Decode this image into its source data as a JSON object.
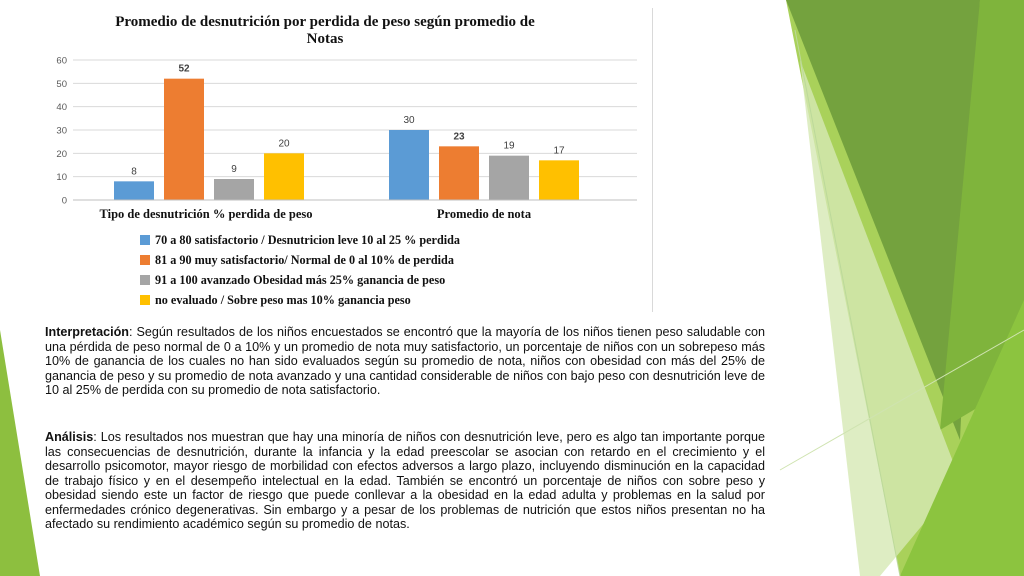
{
  "chart_data": {
    "type": "bar",
    "title": "Promedio de desnutrición por perdida de peso según promedio de Notas",
    "categories": [
      "Tipo de desnutrición % perdida de peso",
      "Promedio de nota"
    ],
    "ylim": [
      0,
      60
    ],
    "yticks": [
      "0",
      "10",
      "20",
      "30",
      "40",
      "50",
      "60"
    ],
    "grid": true,
    "legend_position": "bottom",
    "series": [
      {
        "name": "70 a 80 satisfactorio / Desnutricion leve 10 al 25 % perdida",
        "color": "#5b9bd5",
        "values": [
          8,
          30
        ]
      },
      {
        "name": "81 a 90 muy satisfactorio/ Normal de 0 al 10% de perdida",
        "color": "#ed7d31",
        "values": [
          52,
          23
        ]
      },
      {
        "name": "91 a 100 avanzado Obesidad más 25% ganancia de peso",
        "color": "#a5a5a5",
        "values": [
          9,
          19
        ]
      },
      {
        "name": "no evaluado / Sobre peso mas 10% ganancia peso",
        "color": "#ffc000",
        "values": [
          20,
          17
        ]
      }
    ]
  },
  "text": {
    "interp_label": "Interpretación",
    "interp_body": ": Según resultados de los niños encuestados se encontró que la mayoría de los niños tienen peso saludable con una pérdida de peso normal de 0 a 10% y un promedio de nota muy satisfactorio, un porcentaje de niños con un sobrepeso más 10% de ganancia de los cuales no han sido evaluados según su promedio de nota, niños con obesidad con más del 25% de ganancia de peso y su promedio de nota avanzado y una cantidad considerable de niños con bajo peso con desnutrición leve de 10 al 25% de perdida con su promedio de nota satisfactorio.",
    "analysis_label": "Análisis",
    "analysis_body": ": Los resultados nos muestran que hay una minoría de niños con desnutrición leve, pero es algo tan importante porque las consecuencias de desnutrición, durante la infancia y la edad preescolar se asocian con retardo en el crecimiento y el desarrollo psicomotor, mayor riesgo de morbilidad con efectos adversos a largo plazo, incluyendo disminución en la capacidad de trabajo físico y en el desempeño intelectual en la edad. También se encontró un porcentaje de niños con sobre peso y obesidad siendo este un factor de riesgo que puede conllevar a la obesidad en la edad adulta y problemas en la salud por enfermedades crónico degenerativas. Sin embargo y a pesar de los problemas de nutrición que estos niños presentan no ha afectado su rendimiento académico según su promedio de notas."
  }
}
